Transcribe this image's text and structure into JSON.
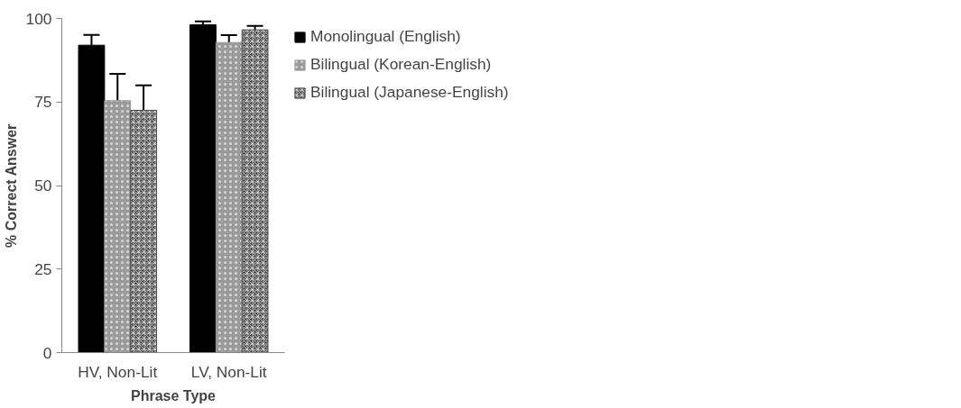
{
  "chart_data": {
    "type": "bar",
    "xlabel": "Phrase Type",
    "ylabel": "% Correct Answer",
    "categories": [
      "HV, Non-Lit",
      "LV, Non-Lit"
    ],
    "series": [
      {
        "name": "Monolingual (English)",
        "color": "#000000",
        "values": [
          92,
          98.1
        ],
        "errors": [
          [
            92,
            95.1
          ],
          [
            98.1,
            99.1
          ]
        ]
      },
      {
        "name": "Bilingual (Korean-English)",
        "color": "#9a9a9a",
        "values": [
          75.4,
          92.8
        ],
        "errors": [
          [
            75.4,
            83.4
          ],
          [
            92.8,
            95
          ]
        ]
      },
      {
        "name": "Bilingual (Japanese-English)",
        "color": "#4d4d4d",
        "values": [
          72.5,
          96.6
        ],
        "errors": [
          [
            72.5,
            80
          ],
          [
            96.6,
            97.8
          ]
        ]
      }
    ],
    "ylim": [
      0,
      100
    ],
    "yticks": [
      0,
      25,
      50,
      75,
      100
    ],
    "grid": false,
    "legend": "right"
  }
}
